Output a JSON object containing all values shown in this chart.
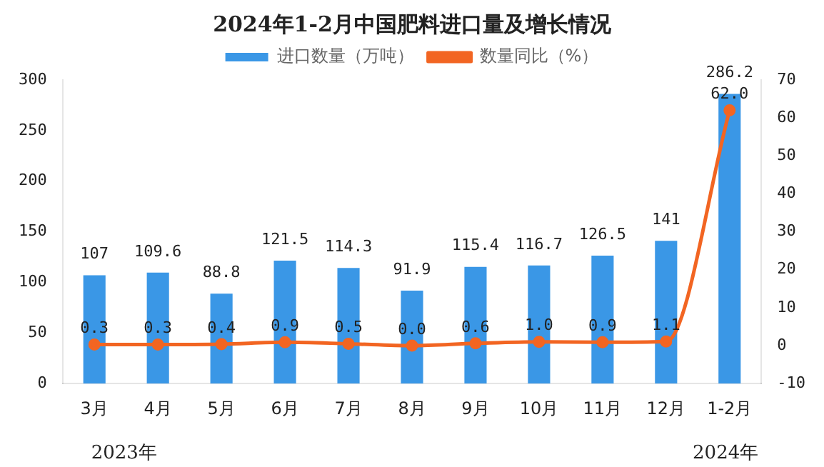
{
  "chart_data": {
    "type": "bar",
    "title": "2024年1-2月中国肥料进口量及增长情况",
    "categories": [
      "3月",
      "4月",
      "5月",
      "6月",
      "7月",
      "8月",
      "9月",
      "10月",
      "11月",
      "12月",
      "1-2月"
    ],
    "series": [
      {
        "name": "进口数量（万吨）",
        "color": "#3a97e6",
        "values": [
          107,
          109.6,
          88.8,
          121.5,
          114.3,
          91.9,
          115.4,
          116.7,
          126.5,
          141,
          286.2
        ],
        "value_labels": [
          "107",
          "109.6",
          "88.8",
          "121.5",
          "114.3",
          "91.9",
          "115.4",
          "116.7",
          "126.5",
          "141",
          "286.2"
        ]
      },
      {
        "name": "数量同比（%）",
        "type": "line",
        "axis": "y2",
        "color": "#f26522",
        "values": [
          0.3,
          0.3,
          0.4,
          0.9,
          0.5,
          0.0,
          0.6,
          1.0,
          0.9,
          1.1,
          62.0
        ],
        "value_labels": [
          "0.3",
          "0.3",
          "0.4",
          "0.9",
          "0.5",
          "0.0",
          "0.6",
          "1.0",
          "0.9",
          "1.1",
          "62.0"
        ]
      }
    ],
    "ylim": [
      0,
      300
    ],
    "yticks": [
      0,
      50,
      100,
      150,
      200,
      250,
      300
    ],
    "y2lim": [
      -10,
      70
    ],
    "y2ticks": [
      -10,
      0,
      10,
      20,
      30,
      40,
      50,
      60,
      70
    ],
    "annotations": [
      "2023年",
      "2024年"
    ],
    "legend": "top",
    "grid": false,
    "marker": "circle"
  }
}
